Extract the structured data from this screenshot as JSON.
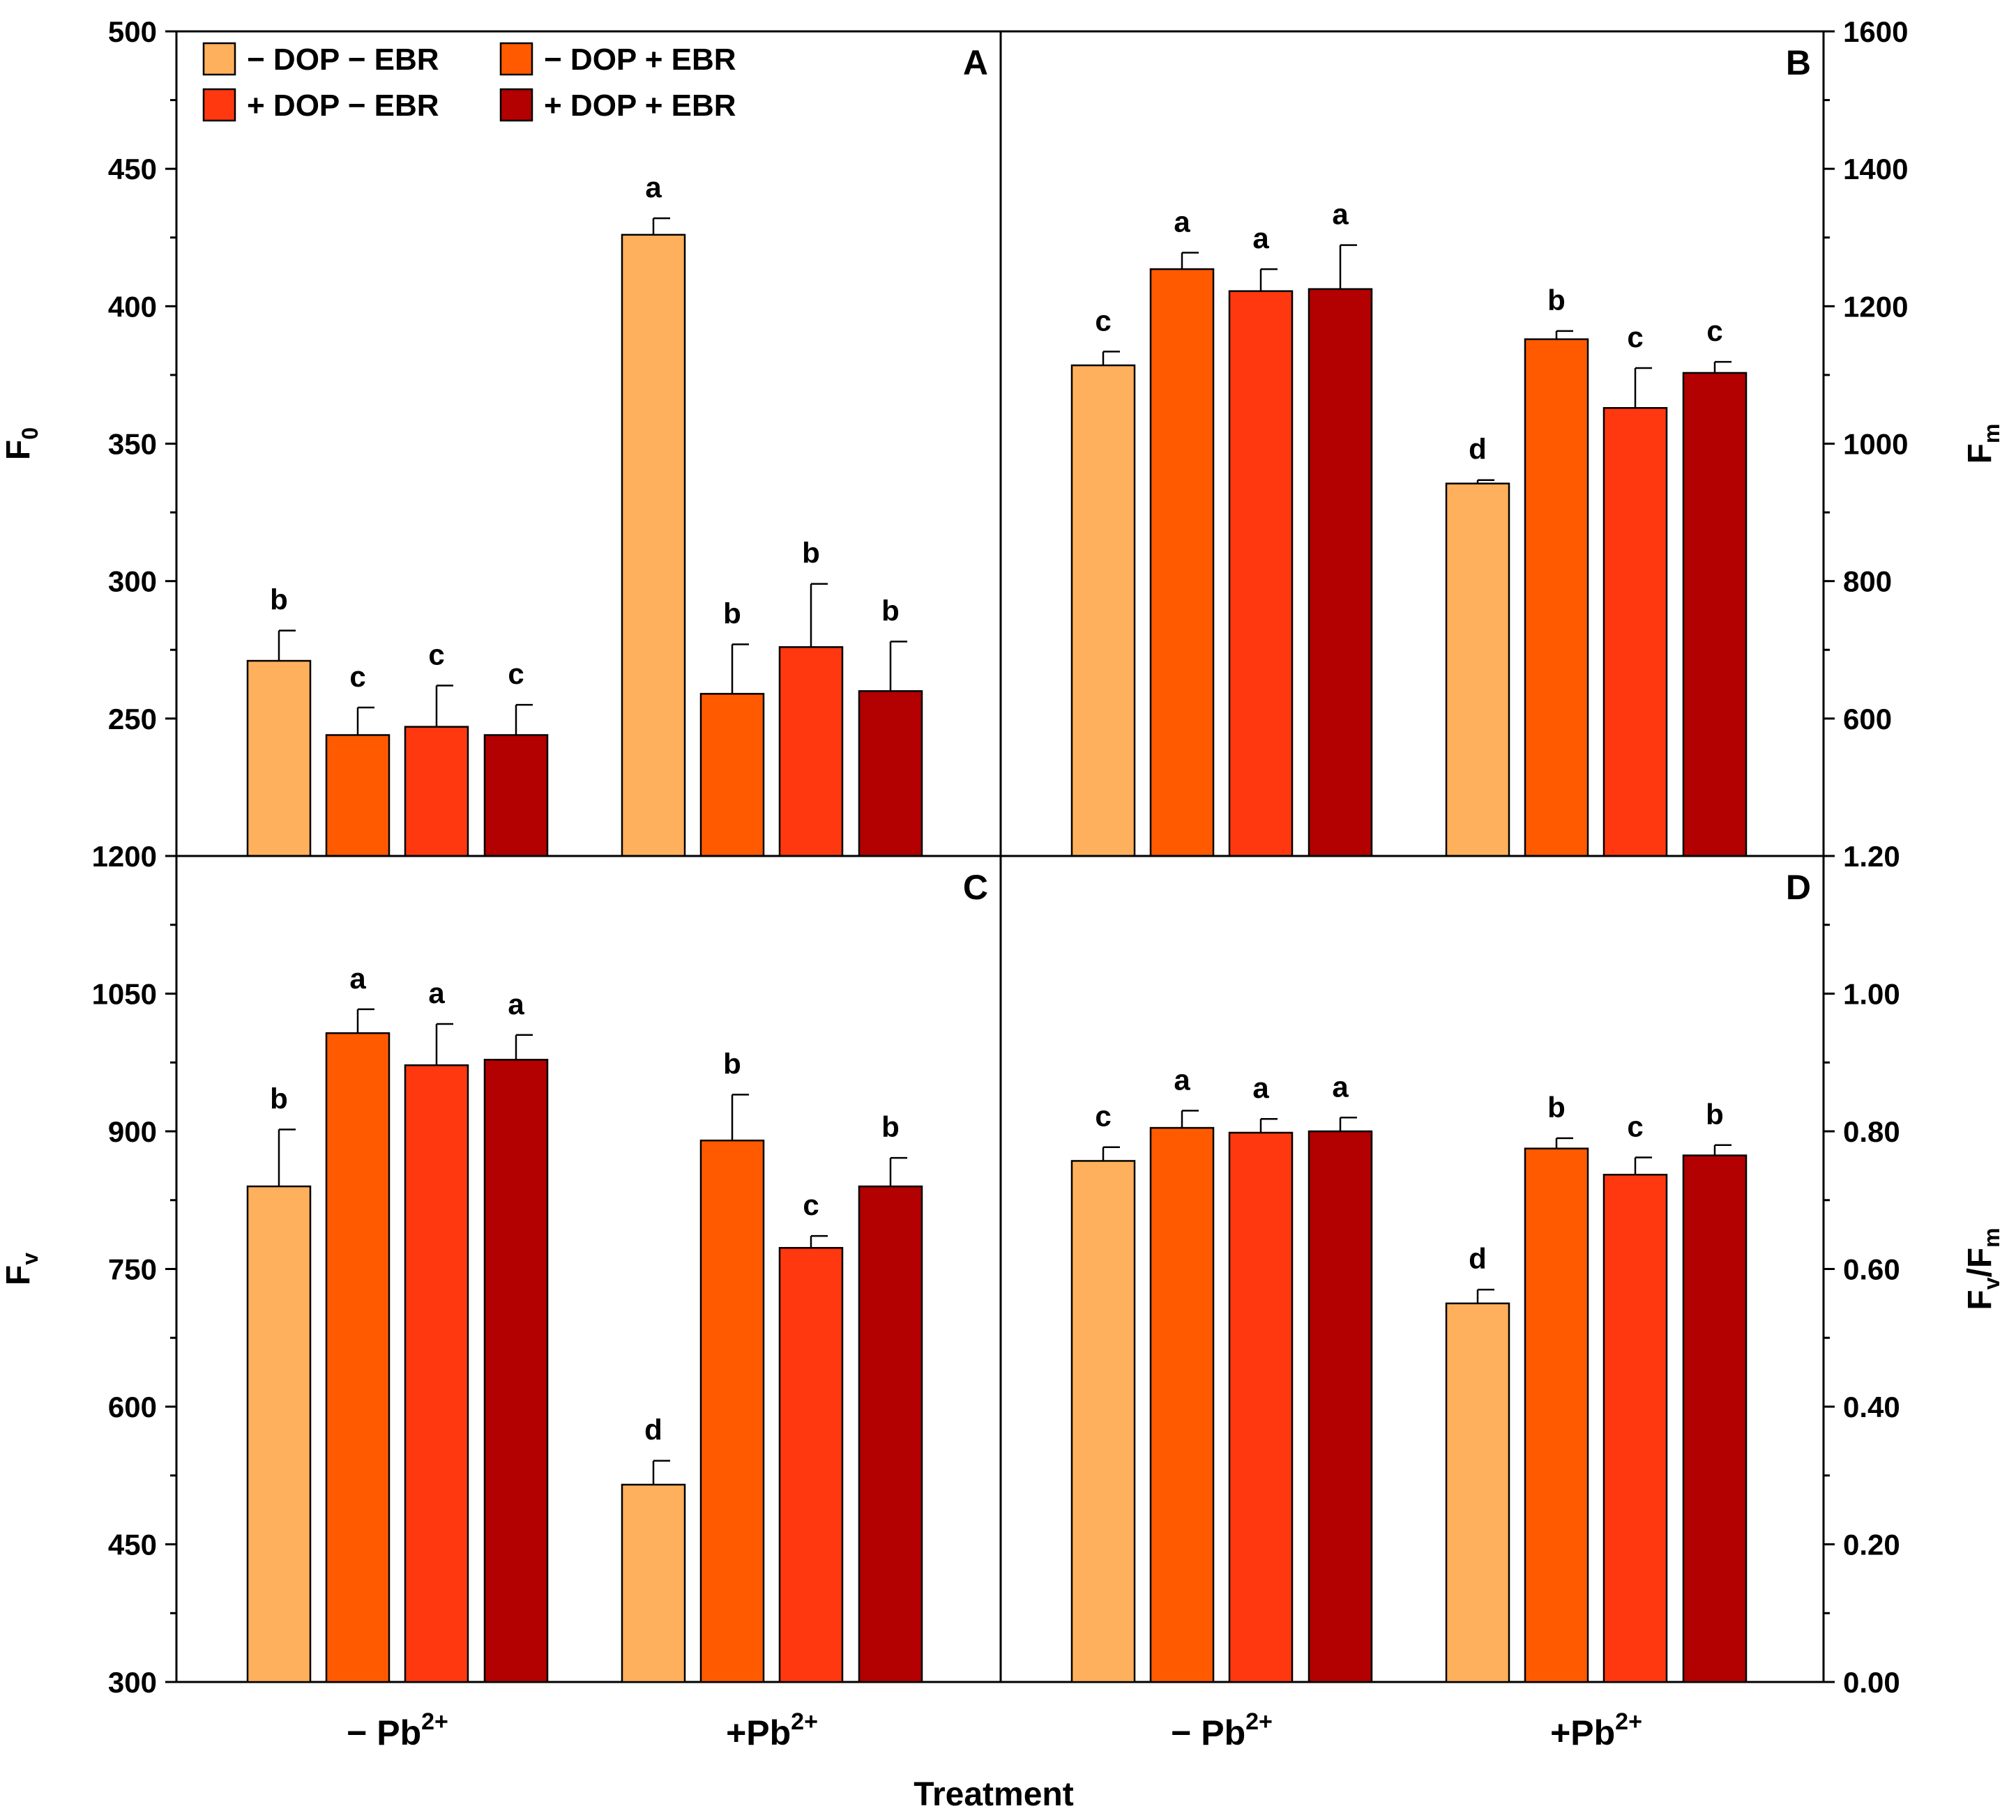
{
  "chart_data": [
    {
      "panel": "A",
      "type": "bar",
      "ylabel": "F",
      "ylabel_sub": "0",
      "ylim": [
        200,
        500
      ],
      "yticks": [
        "250",
        "300",
        "350",
        "400",
        "450",
        "500"
      ],
      "axis_side": "left",
      "categories": [
        "− Pb",
        "+Pb"
      ],
      "category_sup": "2+",
      "series": [
        {
          "name": "− DOP − EBR",
          "values": [
            271,
            426
          ],
          "errors": [
            11,
            6
          ],
          "letters": [
            "b",
            "a"
          ]
        },
        {
          "name": "− DOP + EBR",
          "values": [
            244,
            259
          ],
          "errors": [
            10,
            18
          ],
          "letters": [
            "c",
            "b"
          ]
        },
        {
          "name": "+ DOP − EBR",
          "values": [
            247,
            276
          ],
          "errors": [
            15,
            23
          ],
          "letters": [
            "c",
            "b"
          ]
        },
        {
          "name": "+ DOP + EBR",
          "values": [
            244,
            260
          ],
          "errors": [
            11,
            18
          ],
          "letters": [
            "c",
            "b"
          ]
        }
      ]
    },
    {
      "panel": "B",
      "type": "bar",
      "ylabel": "F",
      "ylabel_sub": "m",
      "ylim": [
        400,
        1600
      ],
      "yticks": [
        "600",
        "800",
        "1000",
        "1200",
        "1400",
        "1600"
      ],
      "axis_side": "right",
      "categories": [
        "− Pb",
        "+Pb"
      ],
      "category_sup": "2+",
      "series": [
        {
          "name": "− DOP − EBR",
          "values": [
            1114,
            942
          ],
          "errors": [
            20,
            5
          ],
          "letters": [
            "c",
            "d"
          ]
        },
        {
          "name": "− DOP + EBR",
          "values": [
            1254,
            1152
          ],
          "errors": [
            24,
            12
          ],
          "letters": [
            "a",
            "b"
          ]
        },
        {
          "name": "+ DOP − EBR",
          "values": [
            1222,
            1052
          ],
          "errors": [
            32,
            58
          ],
          "letters": [
            "a",
            "c"
          ]
        },
        {
          "name": "+ DOP + EBR",
          "values": [
            1225,
            1103
          ],
          "errors": [
            64,
            16
          ],
          "letters": [
            "a",
            "c"
          ]
        }
      ]
    },
    {
      "panel": "C",
      "type": "bar",
      "ylabel": "F",
      "ylabel_sub": "v",
      "ylim": [
        300,
        1200
      ],
      "yticks": [
        "300",
        "450",
        "600",
        "750",
        "900",
        "1050",
        "1200"
      ],
      "axis_side": "left",
      "categories": [
        "− Pb",
        "+Pb"
      ],
      "category_sup": "2+",
      "series": [
        {
          "name": "− DOP − EBR",
          "values": [
            840,
            515
          ],
          "errors": [
            62,
            26
          ],
          "letters": [
            "b",
            "d"
          ]
        },
        {
          "name": "− DOP + EBR",
          "values": [
            1007,
            890
          ],
          "errors": [
            26,
            50
          ],
          "letters": [
            "a",
            "b"
          ]
        },
        {
          "name": "+ DOP − EBR",
          "values": [
            972,
            773
          ],
          "errors": [
            45,
            13
          ],
          "letters": [
            "a",
            "c"
          ]
        },
        {
          "name": "+ DOP + EBR",
          "values": [
            978,
            840
          ],
          "errors": [
            27,
            31
          ],
          "letters": [
            "a",
            "b"
          ]
        }
      ]
    },
    {
      "panel": "D",
      "type": "bar",
      "ylabel": "F",
      "ylabel_sub1": "v",
      "ylabel_mid": "/F",
      "ylabel_sub2": "m",
      "ylim": [
        0,
        1.2
      ],
      "yticks": [
        "0.00",
        "0.20",
        "0.40",
        "0.60",
        "0.80",
        "1.00",
        "1.20"
      ],
      "axis_side": "right",
      "categories": [
        "− Pb",
        "+Pb"
      ],
      "category_sup": "2+",
      "series": [
        {
          "name": "− DOP − EBR",
          "values": [
            0.757,
            0.55
          ],
          "errors": [
            0.02,
            0.02
          ],
          "letters": [
            "c",
            "d"
          ]
        },
        {
          "name": "− DOP + EBR",
          "values": [
            0.805,
            0.775
          ],
          "errors": [
            0.025,
            0.015
          ],
          "letters": [
            "a",
            "b"
          ]
        },
        {
          "name": "+ DOP − EBR",
          "values": [
            0.798,
            0.737
          ],
          "errors": [
            0.02,
            0.025
          ],
          "letters": [
            "a",
            "c"
          ]
        },
        {
          "name": "+ DOP + EBR",
          "values": [
            0.8,
            0.765
          ],
          "errors": [
            0.02,
            0.015
          ],
          "letters": [
            "a",
            "b"
          ]
        }
      ]
    }
  ],
  "xlabel": "Treatment",
  "legend": [
    {
      "label": "− DOP − EBR",
      "color": "#FFB05C"
    },
    {
      "label": "− DOP + EBR",
      "color": "#FF5A00"
    },
    {
      "label": "+ DOP − EBR",
      "color": "#FF3810"
    },
    {
      "label": "+ DOP + EBR",
      "color": "#B30000"
    }
  ],
  "colors": [
    "#FFB05C",
    "#FF5A00",
    "#FF3810",
    "#B30000"
  ]
}
